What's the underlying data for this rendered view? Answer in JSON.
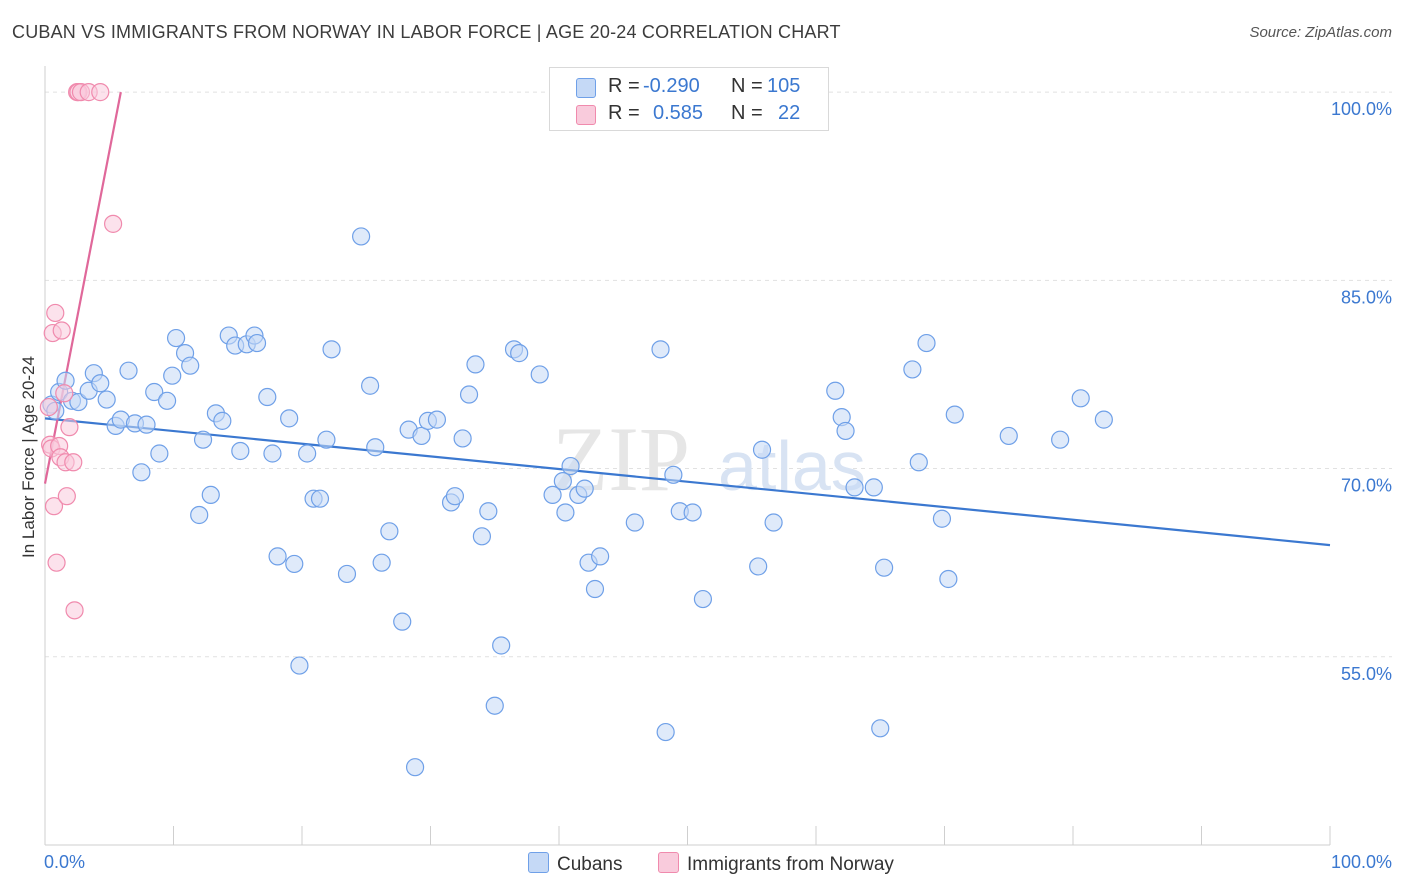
{
  "header": {
    "title": "CUBAN VS IMMIGRANTS FROM NORWAY IN LABOR FORCE | AGE 20-24 CORRELATION CHART",
    "source": "Source: ZipAtlas.com"
  },
  "legend": {
    "rows": [
      {
        "r_label": "R =",
        "r_value": "-0.290",
        "n_label": "N =",
        "n_value": "105",
        "color": "#6fa0e8"
      },
      {
        "r_label": "R =",
        "r_value": "0.585",
        "n_label": "N =",
        "n_value": "22",
        "color": "#f08aad"
      }
    ],
    "bottom": [
      {
        "label": "Cubans",
        "color": "#6fa0e8"
      },
      {
        "label": "Immigrants from Norway",
        "color": "#f08aad"
      }
    ]
  },
  "watermark": {
    "zip": "ZIP",
    "atlas": "atlas"
  },
  "colors": {
    "blue": "#3b78d0",
    "blue_fill": "#c5d9f6",
    "pink": "#e0689a",
    "pink_fill": "#f9cbdc",
    "grid": "#e1e1e1"
  },
  "chart_data": {
    "type": "scatter",
    "title": "CUBAN VS IMMIGRANTS FROM NORWAY IN LABOR FORCE | AGE 20-24 CORRELATION CHART",
    "xlabel": "",
    "ylabel": "In Labor Force | Age 20-24",
    "xlim": [
      0,
      100
    ],
    "ylim": [
      40,
      102.4
    ],
    "x_tick_labels": [
      "0.0%",
      "100.0%"
    ],
    "y_ticks": [
      55,
      70,
      85,
      100
    ],
    "y_tick_labels": [
      "55.0%",
      "70.0%",
      "85.0%",
      "100.0%"
    ],
    "grid": true,
    "series": [
      {
        "name": "Cubans",
        "color": "#6fa0e8",
        "points": [
          [
            0.5,
            75.1
          ],
          [
            0.8,
            74.6
          ],
          [
            1.1,
            76.1
          ],
          [
            1.6,
            77.0
          ],
          [
            2.1,
            75.4
          ],
          [
            2.6,
            75.3
          ],
          [
            3.4,
            76.2
          ],
          [
            3.8,
            77.6
          ],
          [
            4.3,
            76.8
          ],
          [
            4.8,
            75.5
          ],
          [
            5.5,
            73.4
          ],
          [
            5.9,
            73.9
          ],
          [
            6.5,
            77.8
          ],
          [
            7.0,
            73.6
          ],
          [
            7.5,
            69.7
          ],
          [
            7.9,
            73.5
          ],
          [
            8.5,
            76.1
          ],
          [
            8.9,
            71.2
          ],
          [
            9.5,
            75.4
          ],
          [
            9.9,
            77.4
          ],
          [
            10.2,
            80.4
          ],
          [
            10.9,
            79.2
          ],
          [
            11.3,
            78.2
          ],
          [
            12.0,
            66.3
          ],
          [
            12.3,
            72.3
          ],
          [
            12.9,
            67.9
          ],
          [
            13.3,
            74.4
          ],
          [
            13.8,
            73.8
          ],
          [
            14.3,
            80.6
          ],
          [
            14.8,
            79.8
          ],
          [
            15.2,
            71.4
          ],
          [
            15.7,
            79.9
          ],
          [
            16.3,
            80.6
          ],
          [
            16.5,
            80.0
          ],
          [
            17.3,
            75.7
          ],
          [
            17.7,
            71.2
          ],
          [
            18.1,
            63.0
          ],
          [
            19.0,
            74.0
          ],
          [
            19.4,
            62.4
          ],
          [
            19.8,
            54.3
          ],
          [
            20.4,
            71.2
          ],
          [
            20.9,
            67.6
          ],
          [
            21.4,
            67.6
          ],
          [
            21.9,
            72.3
          ],
          [
            22.3,
            79.5
          ],
          [
            23.5,
            61.6
          ],
          [
            24.6,
            88.5
          ],
          [
            25.3,
            76.6
          ],
          [
            25.7,
            71.7
          ],
          [
            26.2,
            62.5
          ],
          [
            26.8,
            65.0
          ],
          [
            27.8,
            57.8
          ],
          [
            28.3,
            73.1
          ],
          [
            28.8,
            46.2
          ],
          [
            29.3,
            72.6
          ],
          [
            29.8,
            73.8
          ],
          [
            30.5,
            73.9
          ],
          [
            31.6,
            67.3
          ],
          [
            31.9,
            67.8
          ],
          [
            32.5,
            72.4
          ],
          [
            33.0,
            75.9
          ],
          [
            33.5,
            78.3
          ],
          [
            34.0,
            64.6
          ],
          [
            34.5,
            66.6
          ],
          [
            35.0,
            51.1
          ],
          [
            35.5,
            55.9
          ],
          [
            36.5,
            79.5
          ],
          [
            36.9,
            79.2
          ],
          [
            38.5,
            77.5
          ],
          [
            39.5,
            67.9
          ],
          [
            40.3,
            69.0
          ],
          [
            40.5,
            66.5
          ],
          [
            40.9,
            70.2
          ],
          [
            41.5,
            67.9
          ],
          [
            42.0,
            68.4
          ],
          [
            42.3,
            62.5
          ],
          [
            42.8,
            60.4
          ],
          [
            43.2,
            63.0
          ],
          [
            45.9,
            65.7
          ],
          [
            47.9,
            79.5
          ],
          [
            48.3,
            49.0
          ],
          [
            48.9,
            69.5
          ],
          [
            49.4,
            66.6
          ],
          [
            50.4,
            66.5
          ],
          [
            51.2,
            59.6
          ],
          [
            55.5,
            62.2
          ],
          [
            55.8,
            71.5
          ],
          [
            56.7,
            65.7
          ],
          [
            61.5,
            76.2
          ],
          [
            62.0,
            74.1
          ],
          [
            62.3,
            73.0
          ],
          [
            63.0,
            68.5
          ],
          [
            64.5,
            68.5
          ],
          [
            65.0,
            49.3
          ],
          [
            65.3,
            62.1
          ],
          [
            67.5,
            77.9
          ],
          [
            68.0,
            70.5
          ],
          [
            68.6,
            80.0
          ],
          [
            69.8,
            66.0
          ],
          [
            70.3,
            61.2
          ],
          [
            70.8,
            74.3
          ],
          [
            75.0,
            72.6
          ],
          [
            79.0,
            72.3
          ],
          [
            80.6,
            75.6
          ],
          [
            82.4,
            73.9
          ]
        ]
      },
      {
        "name": "Immigrants from Norway",
        "color": "#f08aad",
        "points": [
          [
            0.3,
            74.9
          ],
          [
            0.4,
            71.9
          ],
          [
            0.5,
            71.6
          ],
          [
            0.6,
            80.8
          ],
          [
            0.7,
            67.0
          ],
          [
            0.8,
            82.4
          ],
          [
            0.9,
            62.5
          ],
          [
            1.1,
            71.8
          ],
          [
            1.2,
            70.9
          ],
          [
            1.3,
            81.0
          ],
          [
            1.5,
            76.0
          ],
          [
            1.6,
            70.5
          ],
          [
            1.7,
            67.8
          ],
          [
            1.9,
            73.3
          ],
          [
            2.2,
            70.5
          ],
          [
            2.3,
            58.7
          ],
          [
            2.5,
            100.0
          ],
          [
            2.6,
            100.0
          ],
          [
            2.8,
            100.0
          ],
          [
            3.4,
            100.0
          ],
          [
            4.3,
            100.0
          ],
          [
            5.3,
            89.5
          ]
        ]
      }
    ],
    "trendlines": [
      {
        "series": "Cubans",
        "from": [
          0,
          74.0
        ],
        "to": [
          100,
          63.9
        ]
      },
      {
        "series": "Immigrants from Norway",
        "from": [
          0,
          68.8
        ],
        "to": [
          5.9,
          100.0
        ]
      }
    ]
  }
}
